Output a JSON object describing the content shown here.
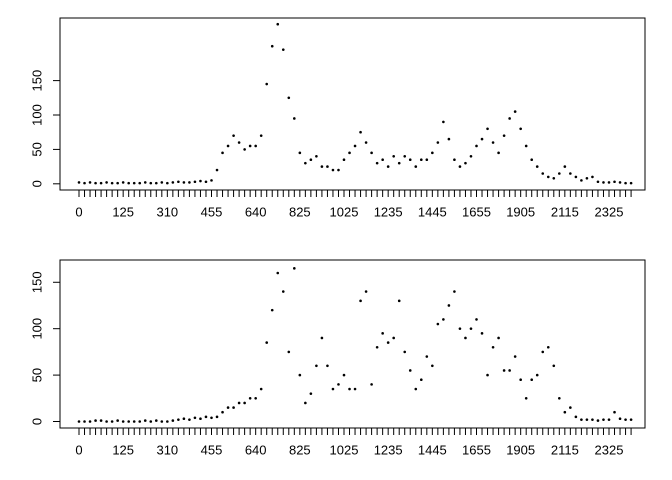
{
  "chart_data": [
    {
      "type": "scatter",
      "color": "#000000",
      "categories": [
        "0",
        null,
        null,
        null,
        null,
        null,
        null,
        null,
        "125",
        null,
        null,
        null,
        null,
        null,
        null,
        null,
        "310",
        null,
        null,
        null,
        null,
        null,
        null,
        null,
        "455",
        null,
        null,
        null,
        null,
        null,
        null,
        null,
        "640",
        null,
        null,
        null,
        null,
        null,
        null,
        null,
        "825",
        null,
        null,
        null,
        null,
        null,
        null,
        null,
        "1025",
        null,
        null,
        null,
        null,
        null,
        null,
        null,
        "1235",
        null,
        null,
        null,
        null,
        null,
        null,
        null,
        "1445",
        null,
        null,
        null,
        null,
        null,
        null,
        null,
        "1655",
        null,
        null,
        null,
        null,
        null,
        null,
        null,
        "1905",
        null,
        null,
        null,
        null,
        null,
        null,
        null,
        "2115",
        null,
        null,
        null,
        null,
        null,
        null,
        null,
        "2325",
        null,
        null,
        null,
        null
      ],
      "values": [
        2,
        1,
        2,
        1,
        1,
        2,
        1,
        1,
        2,
        1,
        1,
        1,
        2,
        1,
        1,
        2,
        1,
        2,
        3,
        2,
        2,
        3,
        4,
        3,
        5,
        20,
        45,
        55,
        70,
        60,
        50,
        55,
        55,
        70,
        145,
        200,
        232,
        195,
        125,
        95,
        45,
        30,
        35,
        40,
        25,
        25,
        20,
        20,
        35,
        45,
        55,
        75,
        60,
        45,
        30,
        35,
        25,
        40,
        30,
        40,
        35,
        25,
        35,
        35,
        45,
        60,
        90,
        65,
        35,
        25,
        30,
        40,
        55,
        65,
        80,
        60,
        45,
        70,
        95,
        105,
        80,
        55,
        35,
        25,
        15,
        10,
        8,
        15,
        25,
        15,
        10,
        5,
        8,
        10,
        3,
        2,
        2,
        3,
        2,
        1,
        1
      ],
      "ylim": [
        -9,
        241
      ],
      "yticks": [
        0,
        50,
        100,
        150
      ]
    },
    {
      "type": "scatter",
      "color": "#000000",
      "categories": [
        "0",
        null,
        null,
        null,
        null,
        null,
        null,
        null,
        "125",
        null,
        null,
        null,
        null,
        null,
        null,
        null,
        "310",
        null,
        null,
        null,
        null,
        null,
        null,
        null,
        "455",
        null,
        null,
        null,
        null,
        null,
        null,
        null,
        "640",
        null,
        null,
        null,
        null,
        null,
        null,
        null,
        "825",
        null,
        null,
        null,
        null,
        null,
        null,
        null,
        "1025",
        null,
        null,
        null,
        null,
        null,
        null,
        null,
        "1235",
        null,
        null,
        null,
        null,
        null,
        null,
        null,
        "1445",
        null,
        null,
        null,
        null,
        null,
        null,
        null,
        "1655",
        null,
        null,
        null,
        null,
        null,
        null,
        null,
        "1905",
        null,
        null,
        null,
        null,
        null,
        null,
        null,
        "2115",
        null,
        null,
        null,
        null,
        null,
        null,
        null,
        "2325",
        null,
        null,
        null,
        null
      ],
      "values": [
        0,
        0,
        0,
        1,
        1,
        0,
        0,
        1,
        0,
        0,
        0,
        0,
        1,
        0,
        1,
        0,
        0,
        1,
        2,
        3,
        2,
        4,
        3,
        5,
        4,
        5,
        10,
        15,
        15,
        20,
        20,
        25,
        25,
        35,
        85,
        120,
        160,
        140,
        75,
        165,
        50,
        20,
        30,
        60,
        90,
        60,
        35,
        40,
        50,
        35,
        35,
        130,
        140,
        40,
        80,
        95,
        85,
        90,
        130,
        75,
        55,
        35,
        45,
        70,
        60,
        105,
        110,
        125,
        140,
        100,
        90,
        100,
        110,
        95,
        50,
        80,
        90,
        55,
        55,
        70,
        45,
        25,
        45,
        50,
        75,
        80,
        60,
        25,
        10,
        15,
        5,
        2,
        2,
        2,
        1,
        2,
        2,
        10,
        3,
        2,
        2
      ],
      "ylim": [
        -7,
        174
      ],
      "yticks": [
        0,
        50,
        100,
        150
      ]
    }
  ]
}
